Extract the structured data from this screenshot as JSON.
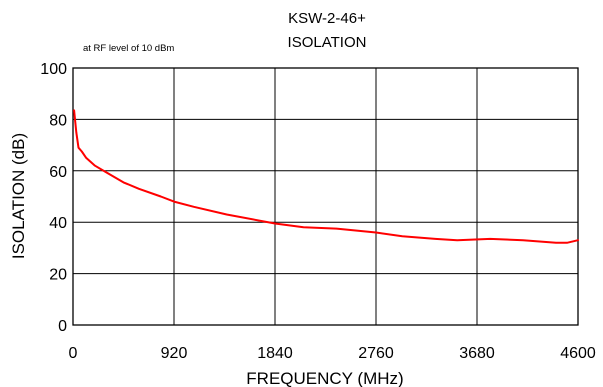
{
  "chart_data": {
    "type": "line",
    "title": [
      "KSW-2-46+",
      "ISOLATION"
    ],
    "annotation": "at RF level of 10 dBm",
    "xlabel": "FREQUENCY (MHz)",
    "ylabel": "ISOLATION (dB)",
    "xlim": [
      0,
      4600
    ],
    "ylim": [
      0,
      100
    ],
    "x_ticks": [
      0,
      920,
      1840,
      2760,
      3680,
      4600
    ],
    "y_ticks": [
      0,
      20,
      40,
      60,
      80,
      100
    ],
    "grid": true,
    "line_color": "#ff0000",
    "series": [
      {
        "x": [
          10,
          30,
          50,
          80,
          120,
          200,
          300,
          460,
          600,
          800,
          920,
          1100,
          1400,
          1840,
          2100,
          2400,
          2760,
          3000,
          3300,
          3500,
          3800,
          4100,
          4400,
          4500,
          4600
        ],
        "values": [
          83.5,
          75,
          69,
          67.5,
          65,
          62,
          59.5,
          55.5,
          53,
          50,
          48,
          46,
          43,
          39.5,
          38,
          37.5,
          36,
          34.5,
          33.5,
          33,
          33.5,
          33,
          32,
          32,
          33
        ]
      }
    ]
  }
}
